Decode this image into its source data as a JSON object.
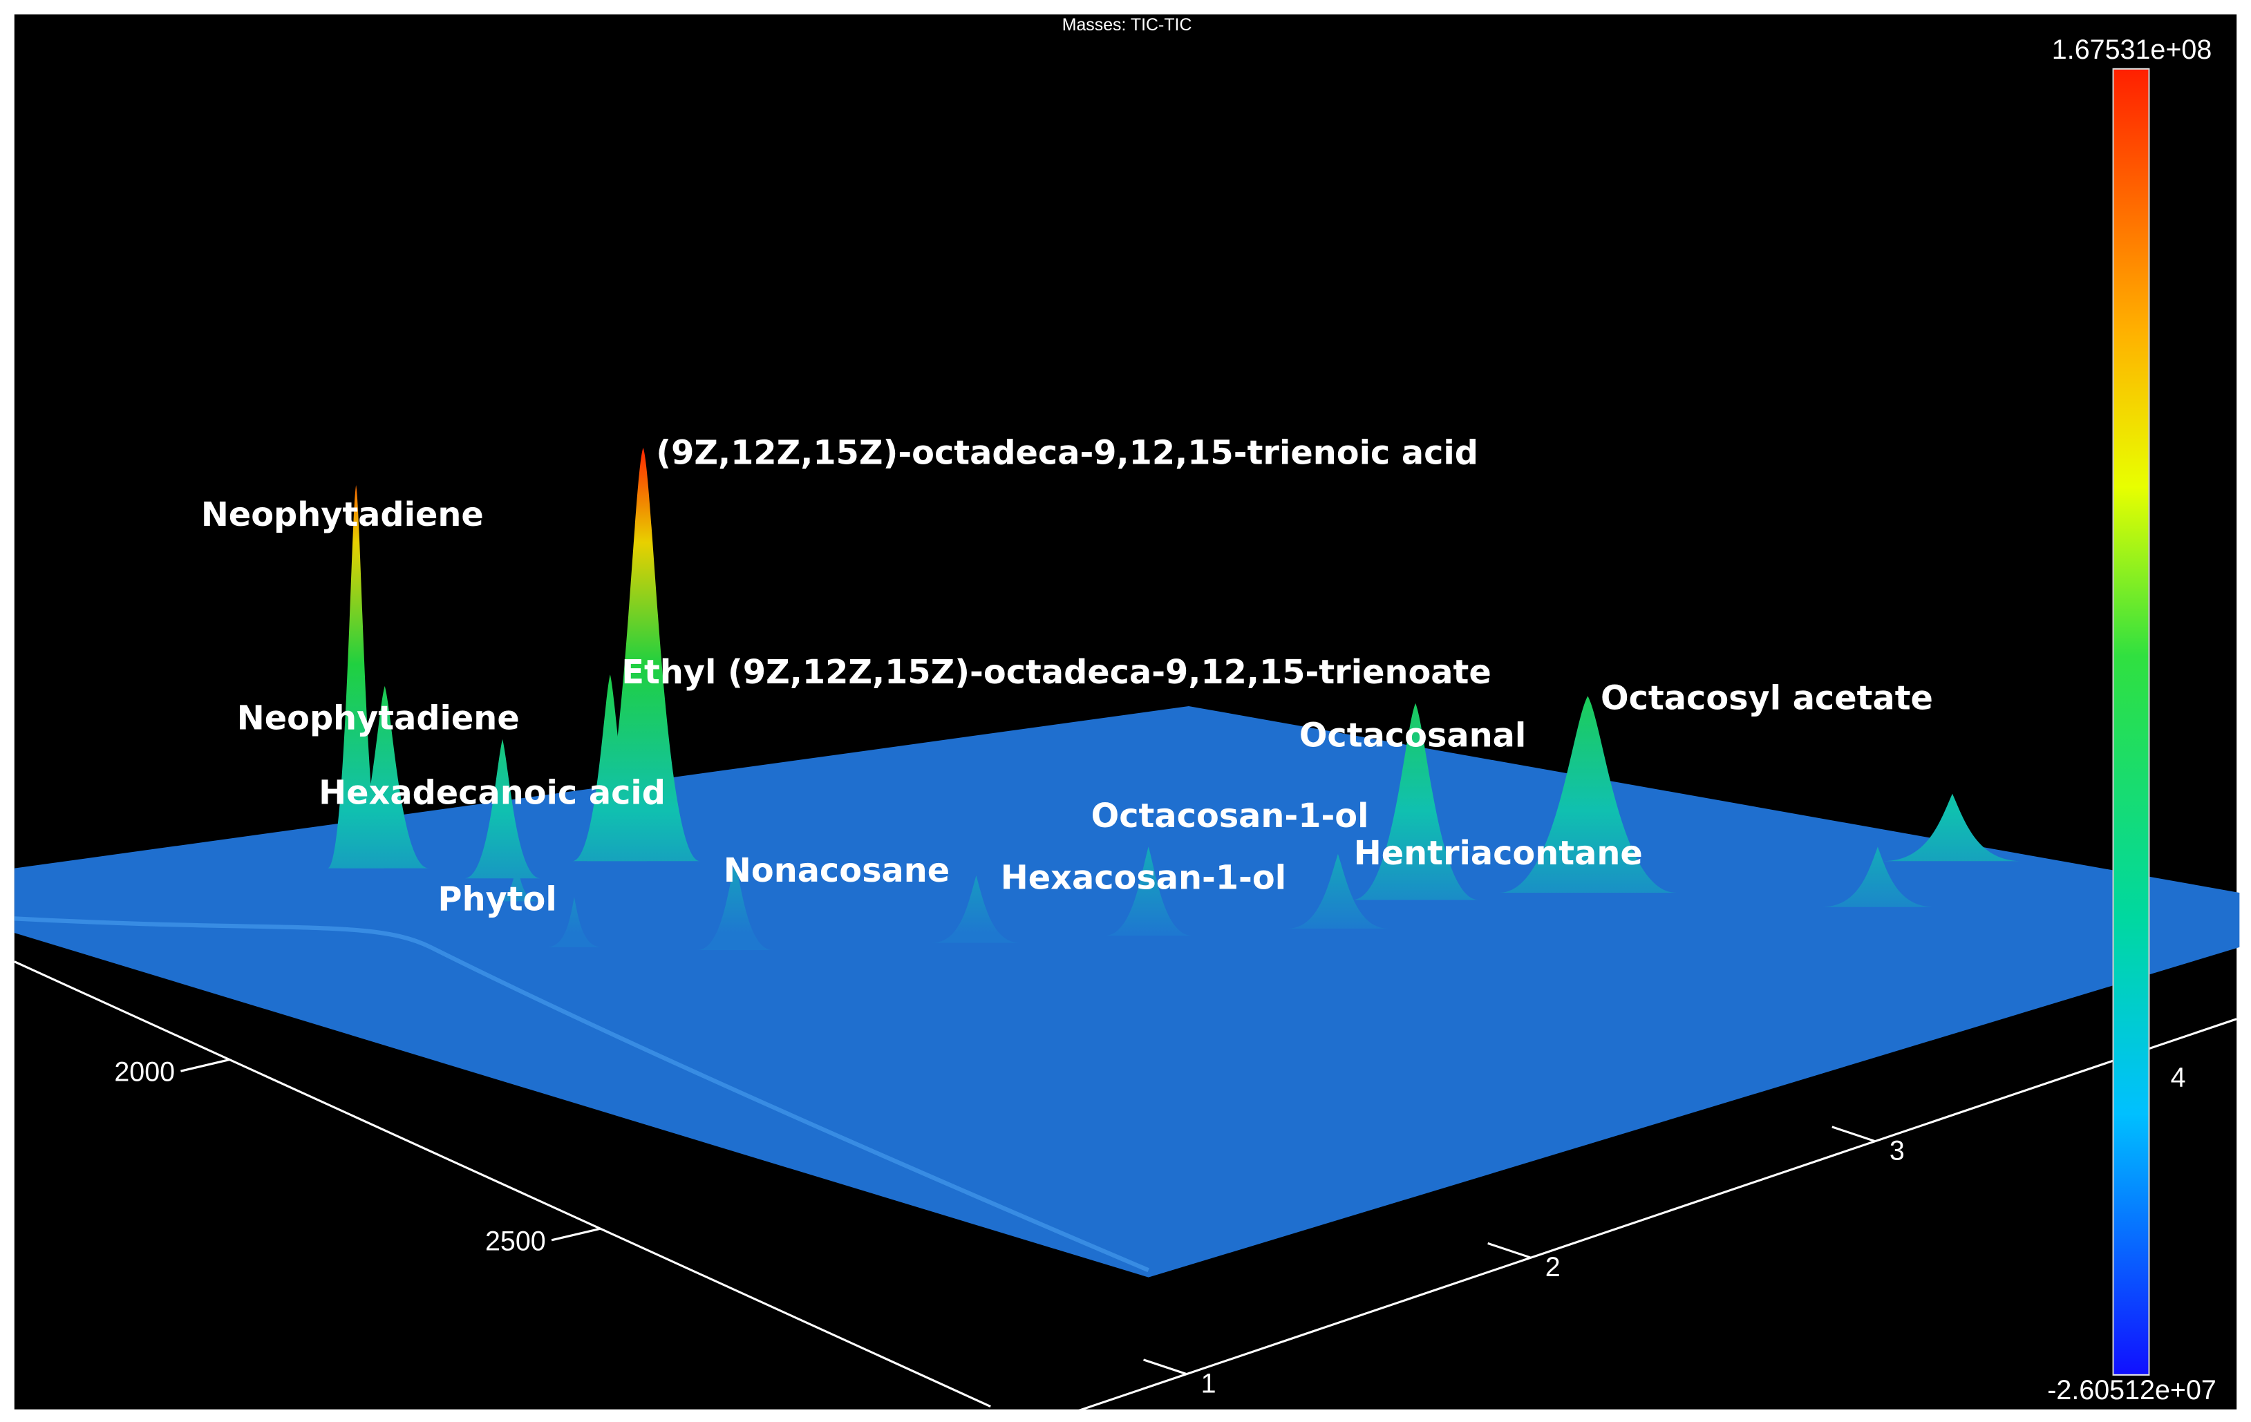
{
  "chart_data": {
    "type": "surface3d",
    "title": "Masses: TIC-TIC",
    "xlim": [
      1710,
      3026
    ],
    "xticks": [
      2000,
      2500
    ],
    "ylim": [
      0.66,
      4.05
    ],
    "yticks": [
      1,
      2,
      3
    ],
    "colorbar": {
      "lim": [
        -26051200,
        167531000
      ],
      "ticks": [
        {
          "value": 167531000,
          "label": "1.67531e+08"
        },
        {
          "value": -26051200,
          "label": "-2.60512e+07"
        }
      ],
      "label": "4"
    },
    "annotations": [
      "Neophytadiene",
      "Neophytadiene",
      "Hexadecanoic acid",
      "Phytol",
      "(9Z,12Z,15Z)-octadeca-9,12,15-trienoic acid",
      "Ethyl (9Z,12Z,15Z)-octadeca-9,12,15-trienoate",
      "Nonacosane",
      "Hexacosan-1-ol",
      "Octacosan-1-ol",
      "Octacosanal",
      "Hentriacontane",
      "Octacosyl acetate"
    ]
  }
}
